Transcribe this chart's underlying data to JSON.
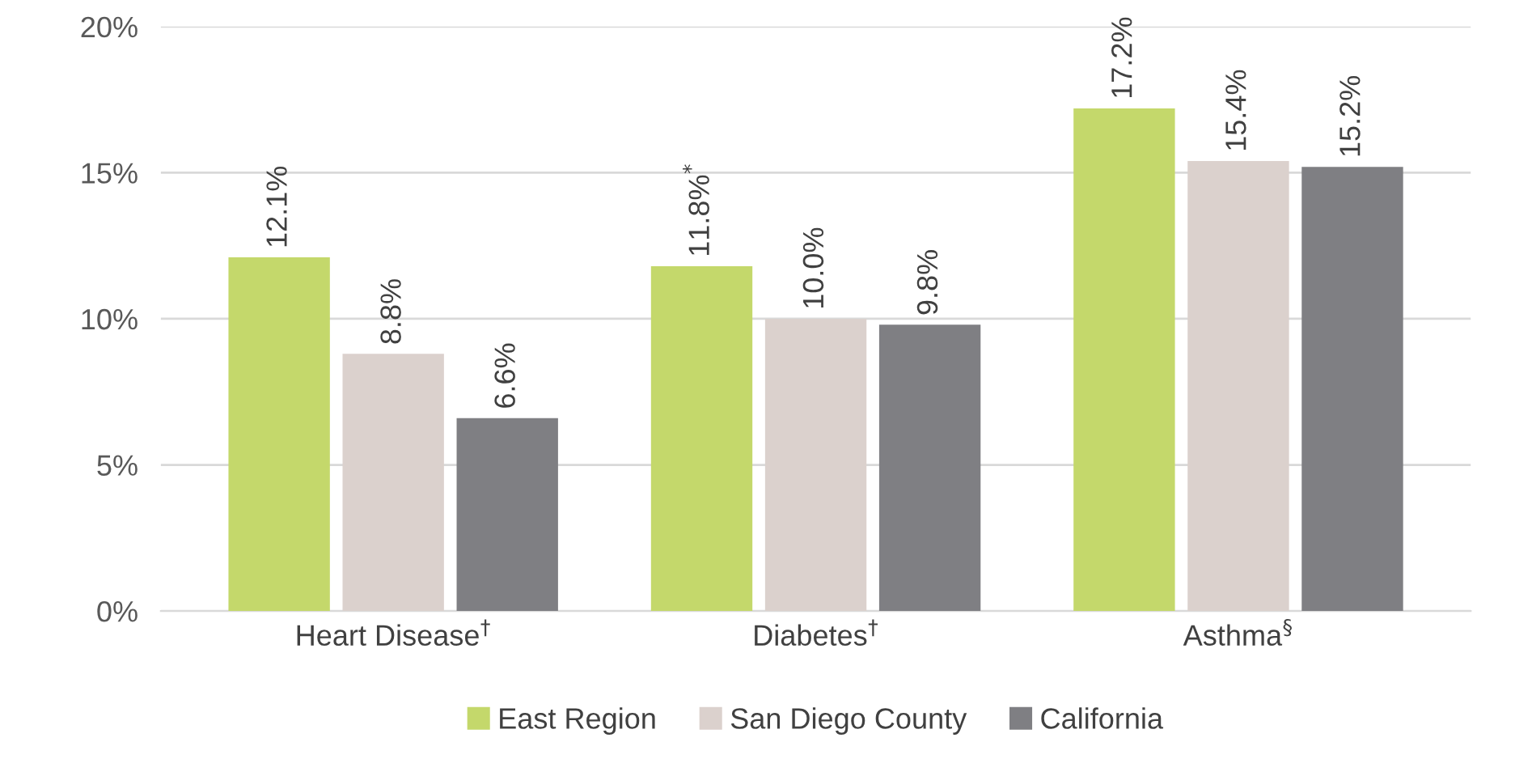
{
  "chart_data": {
    "type": "bar",
    "categories": [
      "Heart Disease$^{†}$",
      "Diabetes$^{†}$",
      "Asthma$^{§}$"
    ],
    "series": [
      {
        "name": "East Region",
        "color": "#c4d86b",
        "values": [
          12.1,
          11.8,
          17.2
        ],
        "value_labels": [
          "12.1%",
          "11.8%$^{*}$",
          "17.2%"
        ]
      },
      {
        "name": "San Diego County",
        "color": "#dbd1cd",
        "values": [
          8.8,
          10.0,
          15.4
        ],
        "value_labels": [
          "8.8%",
          "10.0%",
          "15.4%"
        ]
      },
      {
        "name": "California",
        "color": "#7f7f83",
        "values": [
          6.6,
          9.8,
          15.2
        ],
        "value_labels": [
          "6.6%",
          "9.8%",
          "15.2%"
        ]
      }
    ],
    "ylim": [
      0,
      20
    ],
    "yticks": [
      {
        "value": 0,
        "label": "0%"
      },
      {
        "value": 5,
        "label": "5%"
      },
      {
        "value": 10,
        "label": "10%"
      },
      {
        "value": 15,
        "label": "15%"
      },
      {
        "value": 20,
        "label": "20%"
      }
    ],
    "grid": "y",
    "legend": "bottom"
  }
}
